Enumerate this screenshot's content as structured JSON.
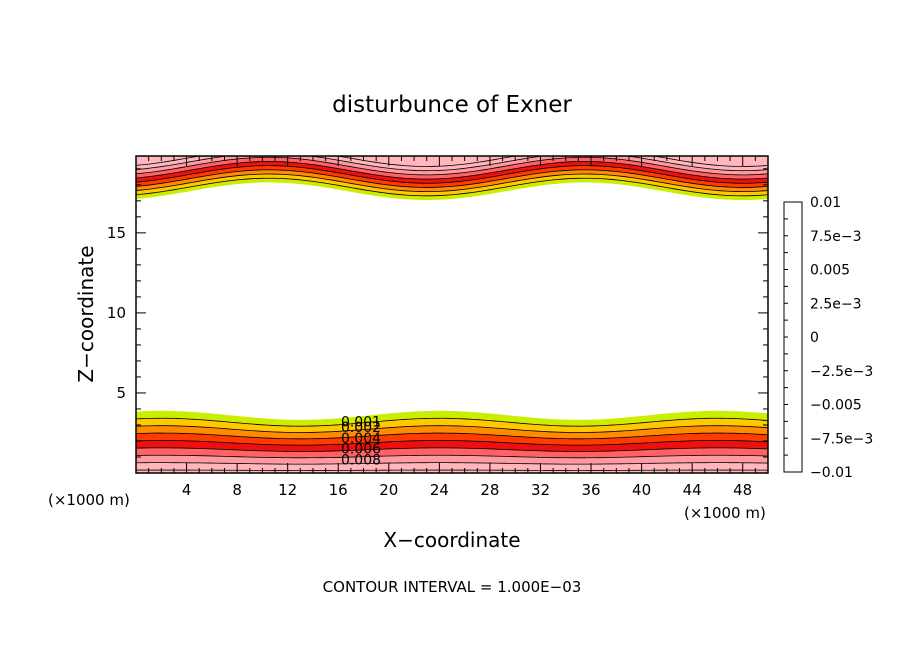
{
  "chart_data": {
    "type": "heatmap",
    "title": "disturbunce of Exner",
    "xlabel": "X−coordinate",
    "ylabel": "Z−coordinate",
    "x_unit_left": "(×1000 m)",
    "x_unit_right": "(×1000 m)",
    "footer": "CONTOUR INTERVAL = 1.000E−03",
    "xlim": [
      0,
      50
    ],
    "ylim": [
      0,
      19.8
    ],
    "x_ticks": [
      4,
      8,
      12,
      16,
      20,
      24,
      28,
      32,
      36,
      40,
      44,
      48
    ],
    "y_ticks": [
      5,
      10,
      15
    ],
    "contour_labels": [
      {
        "text": "0.008",
        "x": 17.8,
        "level": 0.008
      },
      {
        "text": "0.006",
        "x": 17.8,
        "level": 0.006
      },
      {
        "text": "0.004",
        "x": 17.8,
        "level": 0.004
      },
      {
        "text": "0.002",
        "x": 17.8,
        "level": 0.002
      },
      {
        "text": "0.001",
        "x": 17.8,
        "level": 0.001
      }
    ],
    "top_layer": {
      "base_height": 17.6,
      "depth": 2.2,
      "wave_amplitude": 0.55,
      "wave_period": 25,
      "wave_phase": 35.5
    },
    "bottom_layer": {
      "top_height": 3.6,
      "wave_amplitude": 0.28,
      "wave_period": 22,
      "wave_phase": 24
    },
    "colorbar": {
      "min": -0.01,
      "max": 0.01,
      "interval": 0.00125,
      "labels": [
        "0.01",
        "7.5e−3",
        "0.005",
        "2.5e−3",
        "0",
        "−2.5e−3",
        "−0.005",
        "−7.5e−3",
        "−0.01"
      ],
      "colors": [
        "#7a1fb8",
        "#1818cc",
        "#1f3fe6",
        "#2a86f0",
        "#14dcdc",
        "#14d296",
        "#18c81e",
        "#6ed60c",
        "#ccec00",
        "#ffc800",
        "#ff8c00",
        "#ff3c00",
        "#ee1010",
        "#ff6262",
        "#ff9aa2",
        "#ffb6bc"
      ]
    }
  }
}
